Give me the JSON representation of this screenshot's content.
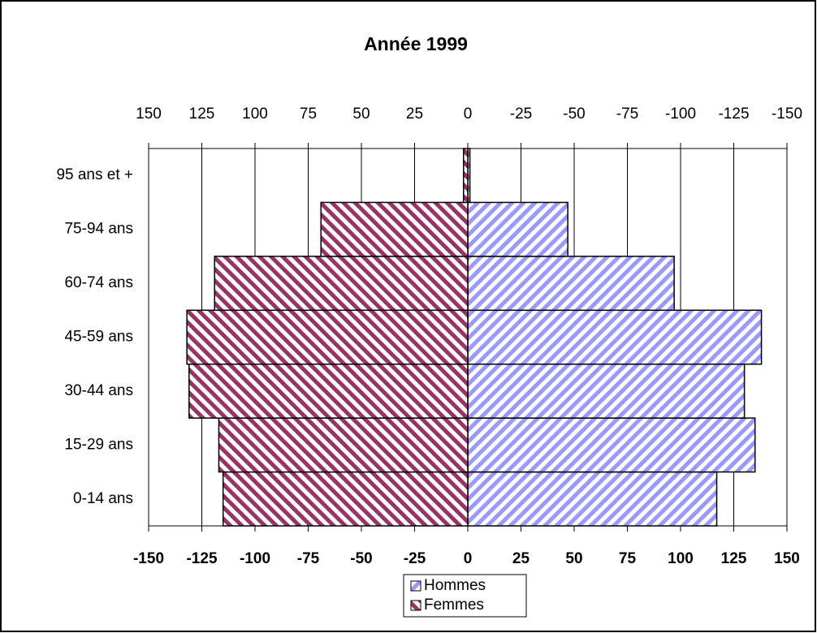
{
  "chart_data": {
    "type": "bar",
    "orientation": "horizontal",
    "title": "Année 1999",
    "categories": [
      "0-14 ans",
      "15-29 ans",
      "30-44 ans",
      "45-59 ans",
      "60-74 ans",
      "75-94 ans",
      "95 ans et +"
    ],
    "series": [
      {
        "name": "Hommes",
        "color": "#9999ff",
        "values": [
          117,
          135,
          130,
          138,
          97,
          47,
          1
        ]
      },
      {
        "name": "Femmes",
        "color": "#993366",
        "values": [
          -115,
          -117,
          -131,
          -132,
          -119,
          -69,
          -2
        ]
      }
    ],
    "xlim": [
      -150,
      150
    ],
    "xticks": [
      -150,
      -125,
      -100,
      -75,
      -50,
      -25,
      0,
      25,
      50,
      75,
      100,
      125,
      150
    ],
    "x2lim": [
      150,
      -150
    ],
    "x2ticks": [
      150,
      125,
      100,
      75,
      50,
      25,
      0,
      -25,
      -50,
      -75,
      -100,
      -125,
      -150
    ],
    "grid": true
  }
}
